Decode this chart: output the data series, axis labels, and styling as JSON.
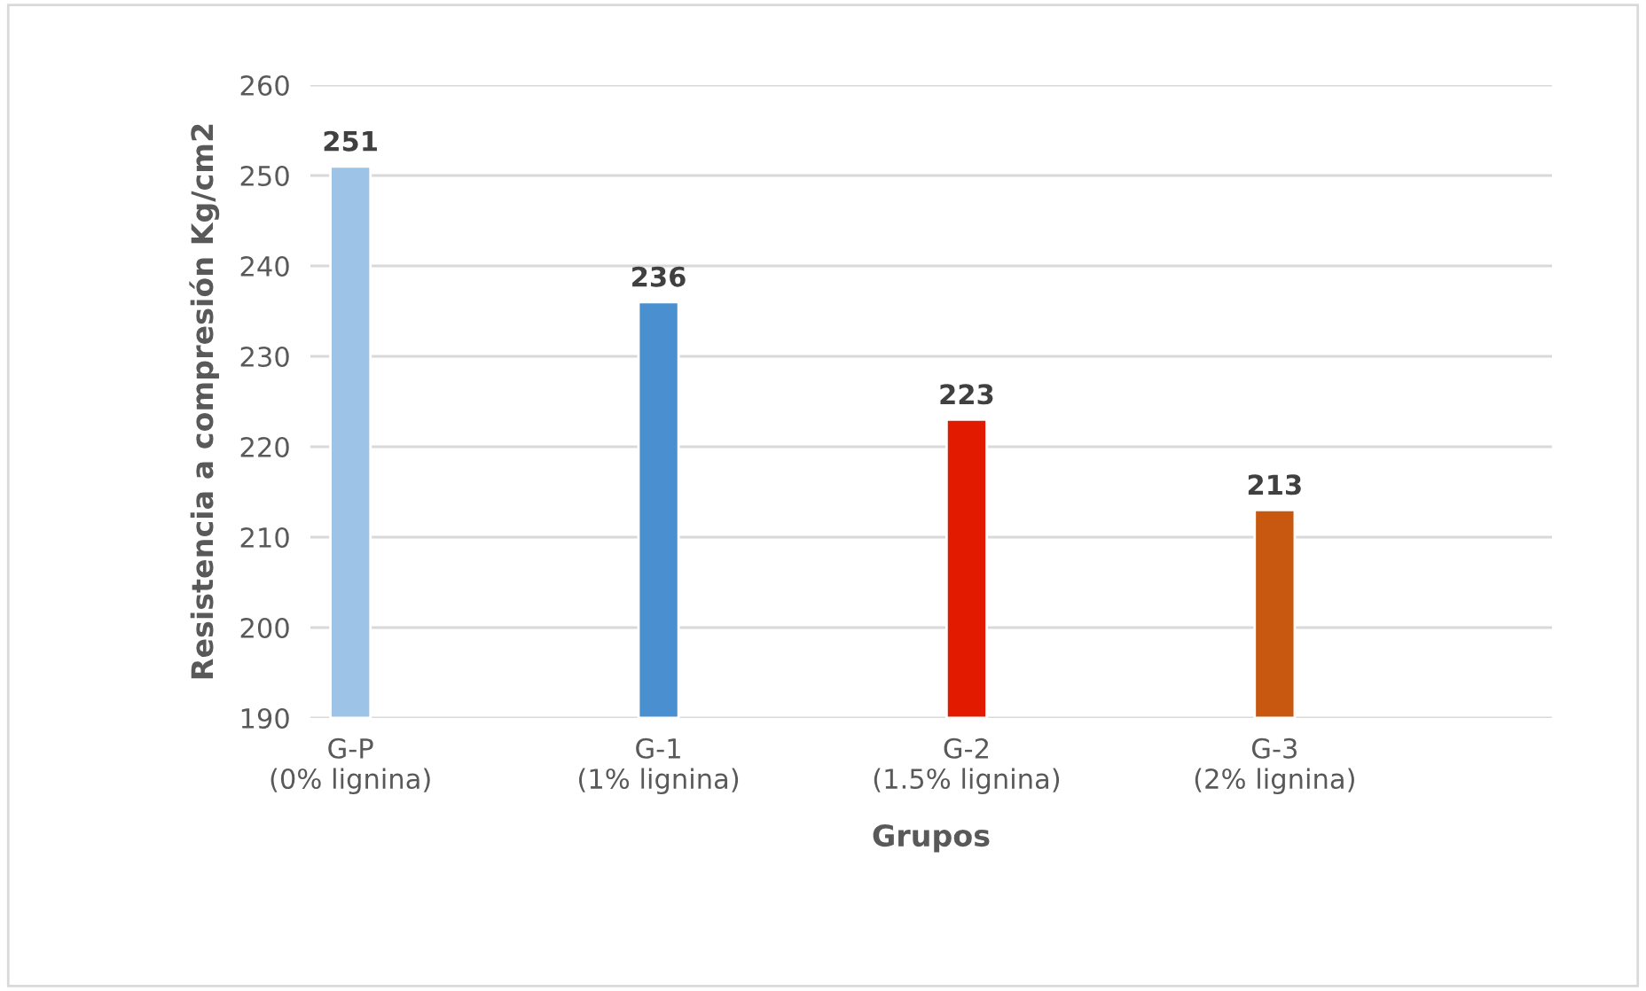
{
  "chart_data": {
    "type": "bar",
    "xlabel": "Grupos",
    "ylabel": "Resistencia a compresión Kg/cm2",
    "categories": [
      "G-P\n(0% lignina)",
      "G-1\n(1% lignina)",
      "G-2\n(1.5% lignina)",
      "G-3\n(2% lignina)"
    ],
    "values": [
      251,
      236,
      223,
      213
    ],
    "colors": [
      "#9dc3e6",
      "#4a8fd0",
      "#e21a00",
      "#c8580f"
    ],
    "ylim": [
      190,
      260
    ],
    "yticks": [
      190,
      200,
      210,
      220,
      230,
      240,
      250,
      260
    ],
    "grid": "y",
    "data_labels": true
  }
}
